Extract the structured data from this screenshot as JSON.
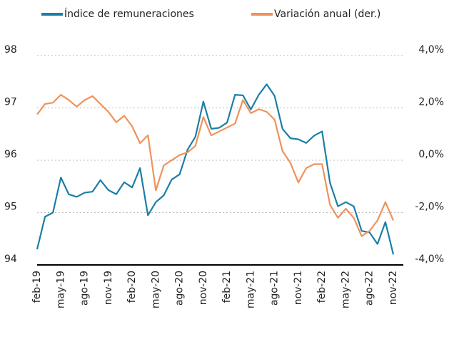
{
  "chart_data": {
    "type": "line",
    "categories": [
      "feb-19",
      null,
      null,
      "may-19",
      null,
      null,
      "ago-19",
      null,
      null,
      "nov-19",
      null,
      null,
      "feb-20",
      null,
      null,
      "may-20",
      null,
      null,
      "ago-20",
      null,
      null,
      "nov-20",
      null,
      null,
      "feb-21",
      null,
      null,
      "may-21",
      null,
      null,
      "ago-21",
      null,
      null,
      "nov-21",
      null,
      null,
      "feb-22",
      null,
      null,
      "may-22",
      null,
      null,
      "ago-22",
      null,
      null,
      "nov-22"
    ],
    "series": [
      {
        "name": "Índice de remuneraciones",
        "color": "#1a7fa6",
        "axis": "y",
        "values": [
          94.3,
          94.92,
          95.0,
          95.67,
          95.35,
          95.3,
          95.38,
          95.4,
          95.62,
          95.43,
          95.35,
          95.58,
          95.48,
          95.85,
          94.95,
          95.2,
          95.33,
          95.63,
          95.73,
          96.2,
          96.45,
          97.12,
          96.6,
          96.62,
          96.72,
          97.25,
          97.24,
          96.97,
          97.25,
          97.45,
          97.23,
          96.6,
          96.42,
          96.4,
          96.33,
          96.47,
          96.55,
          95.57,
          95.12,
          95.2,
          95.12,
          94.65,
          94.62,
          94.4,
          94.82,
          94.2
        ]
      },
      {
        "name": "Variación anual (der.)",
        "color": "#f0915a",
        "axis": "y2",
        "values": [
          1.75,
          2.15,
          2.2,
          2.5,
          2.3,
          2.05,
          2.3,
          2.45,
          2.15,
          1.85,
          1.45,
          1.7,
          1.3,
          0.65,
          0.95,
          -1.15,
          -0.2,
          0.0,
          0.2,
          0.3,
          0.55,
          1.65,
          0.95,
          1.1,
          1.25,
          1.4,
          2.3,
          1.8,
          1.95,
          1.85,
          1.55,
          0.35,
          -0.1,
          -0.85,
          -0.3,
          -0.15,
          -0.15,
          -1.7,
          -2.2,
          -1.85,
          -2.2,
          -2.9,
          -2.7,
          -2.3,
          -1.6,
          -2.3
        ]
      }
    ],
    "ylim": [
      94,
      98
    ],
    "yticks": [
      94,
      95,
      96,
      97,
      98
    ],
    "y2lim": [
      -4,
      4
    ],
    "y2ticks": [
      {
        "value": -4,
        "label": "-4,0%"
      },
      {
        "value": -2,
        "label": "-2,0%"
      },
      {
        "value": 0,
        "label": "0,0%"
      },
      {
        "value": 2,
        "label": "2,0%"
      },
      {
        "value": 4,
        "label": "4,0%"
      }
    ],
    "grid": true,
    "legend": "top"
  }
}
